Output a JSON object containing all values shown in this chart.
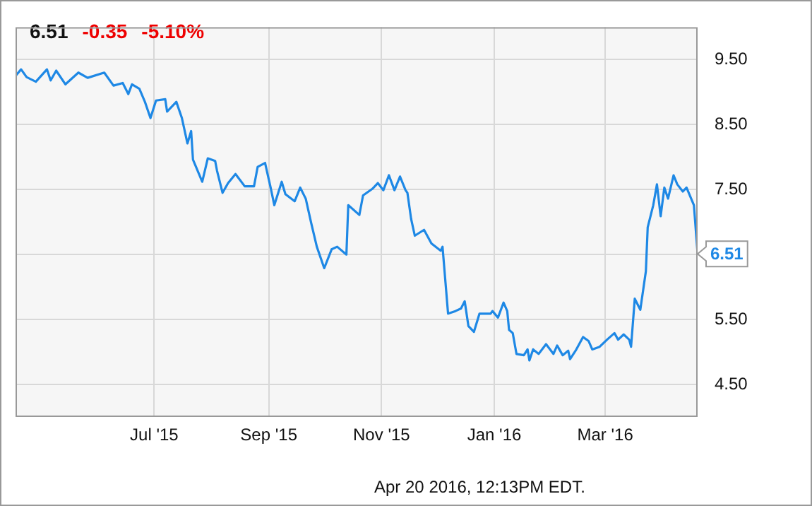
{
  "chart_data": {
    "type": "line",
    "annotations": [
      "6.51",
      "-0.35",
      "-5.10%",
      "Apr 20 2016, 12:13PM EDT."
    ],
    "x": [
      "2015-04-17",
      "2015-04-20",
      "2015-04-23",
      "2015-04-28",
      "2015-05-04",
      "2015-05-06",
      "2015-05-09",
      "2015-05-14",
      "2015-05-21",
      "2015-05-26",
      "2015-06-04",
      "2015-06-09",
      "2015-06-14",
      "2015-06-17",
      "2015-06-19",
      "2015-06-23",
      "2015-06-26",
      "2015-06-29",
      "2015-07-02",
      "2015-07-07",
      "2015-07-08",
      "2015-07-13",
      "2015-07-16",
      "2015-07-19",
      "2015-07-21",
      "2015-07-22",
      "2015-07-27",
      "2015-07-30",
      "2015-08-03",
      "2015-08-04",
      "2015-08-07",
      "2015-08-10",
      "2015-08-14",
      "2015-08-19",
      "2015-08-24",
      "2015-08-26",
      "2015-08-30",
      "2015-09-02",
      "2015-09-04",
      "2015-09-08",
      "2015-09-10",
      "2015-09-15",
      "2015-09-18",
      "2015-09-21",
      "2015-09-24",
      "2015-09-27",
      "2015-10-01",
      "2015-10-05",
      "2015-10-08",
      "2015-10-13",
      "2015-10-14",
      "2015-10-20",
      "2015-10-22",
      "2015-10-27",
      "2015-10-30",
      "2015-11-02",
      "2015-11-05",
      "2015-11-08",
      "2015-11-11",
      "2015-11-14",
      "2015-11-15",
      "2015-11-17",
      "2015-11-19",
      "2015-11-24",
      "2015-11-28",
      "2015-12-03",
      "2015-12-04",
      "2015-12-07",
      "2015-12-11",
      "2015-12-14",
      "2015-12-16",
      "2015-12-18",
      "2015-12-21",
      "2015-12-24",
      "2015-12-30",
      "2015-12-31",
      "2016-01-03",
      "2016-01-06",
      "2016-01-08",
      "2016-01-09",
      "2016-01-11",
      "2016-01-13",
      "2016-01-17",
      "2016-01-19",
      "2016-01-20",
      "2016-01-22",
      "2016-01-25",
      "2016-01-29",
      "2016-02-02",
      "2016-02-04",
      "2016-02-07",
      "2016-02-10",
      "2016-02-11",
      "2016-02-14",
      "2016-02-18",
      "2016-02-21",
      "2016-02-23",
      "2016-02-27",
      "2016-03-02",
      "2016-03-06",
      "2016-03-08",
      "2016-03-11",
      "2016-03-14",
      "2016-03-15",
      "2016-03-17",
      "2016-03-20",
      "2016-03-23",
      "2016-03-24",
      "2016-03-27",
      "2016-03-29",
      "2016-03-31",
      "2016-04-02",
      "2016-04-04",
      "2016-04-07",
      "2016-04-09",
      "2016-04-12",
      "2016-04-14",
      "2016-04-18",
      "2016-04-20"
    ],
    "series": [
      {
        "color": "#1e88e5",
        "values": [
          9.25,
          9.35,
          9.23,
          9.16,
          9.35,
          9.18,
          9.33,
          9.12,
          9.3,
          9.22,
          9.3,
          9.1,
          9.14,
          8.97,
          9.12,
          9.05,
          8.85,
          8.6,
          8.87,
          8.89,
          8.7,
          8.85,
          8.6,
          8.21,
          8.4,
          7.96,
          7.62,
          7.98,
          7.94,
          7.79,
          7.45,
          7.6,
          7.74,
          7.55,
          7.55,
          7.85,
          7.91,
          7.53,
          7.26,
          7.62,
          7.43,
          7.32,
          7.53,
          7.36,
          6.98,
          6.62,
          6.29,
          6.58,
          6.62,
          6.5,
          7.26,
          7.11,
          7.41,
          7.51,
          7.6,
          7.49,
          7.72,
          7.49,
          7.7,
          7.49,
          7.45,
          7.05,
          6.79,
          6.88,
          6.67,
          6.56,
          6.62,
          5.59,
          5.63,
          5.67,
          5.78,
          5.4,
          5.31,
          5.59,
          5.59,
          5.63,
          5.53,
          5.76,
          5.63,
          5.34,
          5.29,
          4.97,
          4.95,
          5.04,
          4.87,
          5.04,
          4.97,
          5.12,
          4.97,
          5.1,
          4.95,
          5.02,
          4.89,
          5.02,
          5.23,
          5.17,
          5.04,
          5.08,
          5.19,
          5.29,
          5.19,
          5.27,
          5.19,
          5.08,
          5.82,
          5.65,
          6.24,
          6.92,
          7.26,
          7.58,
          7.09,
          7.53,
          7.36,
          7.72,
          7.58,
          7.47,
          7.53,
          7.26,
          6.51
        ],
        "value_labels": [
          null,
          null,
          null,
          null,
          null,
          null,
          null,
          null,
          null,
          null,
          null,
          null,
          null,
          null,
          null,
          null,
          null,
          null,
          null,
          null,
          null,
          null,
          null,
          null,
          null,
          null,
          null,
          null,
          null,
          null,
          null,
          null,
          null,
          null,
          null,
          null,
          null,
          null,
          null,
          null,
          null,
          null,
          null,
          null,
          null,
          null,
          null,
          null,
          null,
          null,
          null,
          null,
          null,
          null,
          null,
          null,
          null,
          null,
          null,
          null,
          null,
          null,
          null,
          null,
          null,
          null,
          null,
          null,
          null,
          null,
          null,
          null,
          null,
          null,
          null,
          null,
          null,
          null,
          null,
          null,
          null,
          null,
          null,
          null,
          null,
          null,
          null,
          null,
          null,
          null,
          null,
          null,
          null,
          null,
          null,
          null,
          null,
          null,
          null,
          null,
          null,
          null,
          null,
          null,
          null,
          null,
          null,
          null,
          null,
          null,
          null,
          null,
          null,
          null,
          null,
          null,
          null,
          null,
          "6.51"
        ]
      }
    ],
    "xlim": [
      "2015-04-17",
      "2016-04-20"
    ],
    "xticks": [
      {
        "value": "2015-07-01",
        "label": "Jul '15"
      },
      {
        "value": "2015-09-01",
        "label": "Sep '15"
      },
      {
        "value": "2015-11-01",
        "label": "Nov '15"
      },
      {
        "value": "2016-01-01",
        "label": "Jan '16"
      },
      {
        "value": "2016-03-01",
        "label": "Mar '16"
      }
    ],
    "ylim": [
      4,
      10
    ],
    "yticks": [
      {
        "value": 4.5,
        "label": "4.50"
      },
      {
        "value": 5.5,
        "label": "5.50"
      },
      {
        "value": 6.5,
        "label": null
      },
      {
        "value": 7.5,
        "label": "7.50"
      },
      {
        "value": 8.5,
        "label": "8.50"
      },
      {
        "value": 9.5,
        "label": "9.50"
      }
    ],
    "grid": true,
    "legend": false,
    "marker": "none",
    "line_style": "solid"
  }
}
